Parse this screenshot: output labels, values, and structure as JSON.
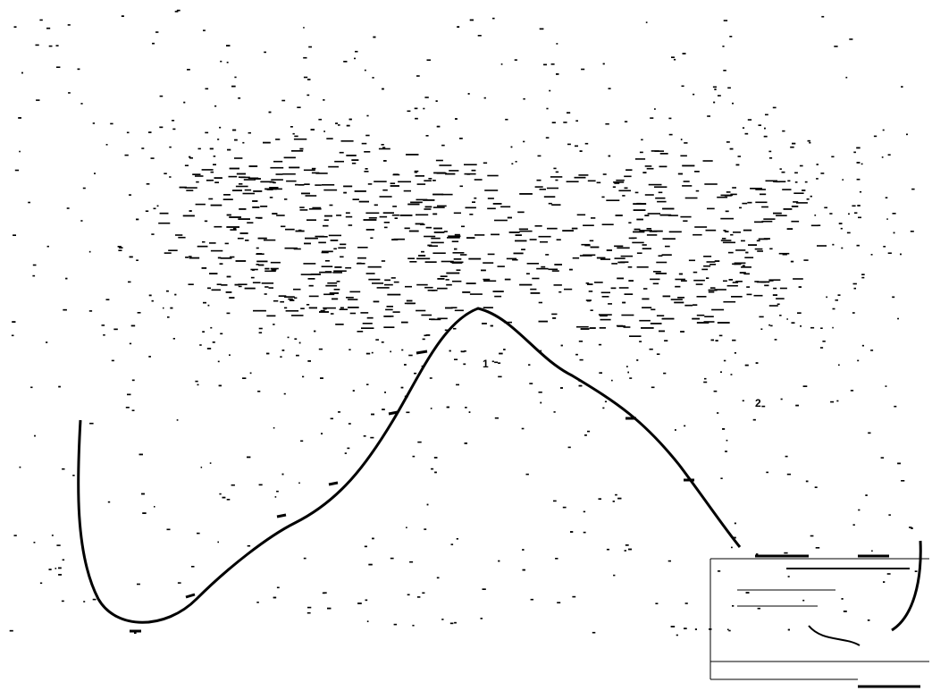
{
  "annotations": [
    {
      "label": "1"
    },
    {
      "label": "2"
    }
  ]
}
